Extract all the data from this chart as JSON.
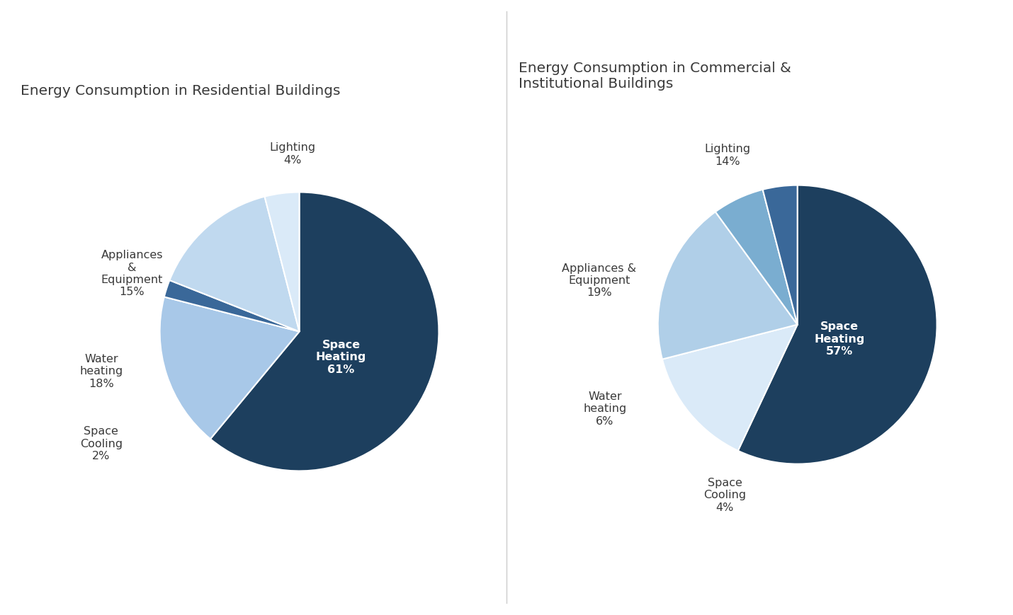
{
  "residential": {
    "title": "Energy Consumption in Residential Buildings",
    "values": [
      61,
      18,
      2,
      15,
      4
    ],
    "colors": [
      "#1d3f5e",
      "#a8c8e8",
      "#3a6899",
      "#c0d9ef",
      "#daeaf8"
    ],
    "startangle": 90
  },
  "commercial": {
    "title": "Energy Consumption in Commercial &\nInstitutional Buildings",
    "values": [
      57,
      14,
      19,
      6,
      4
    ],
    "colors": [
      "#1d3f5e",
      "#daeaf8",
      "#b0cfe8",
      "#7aadd0",
      "#3a6899"
    ],
    "startangle": 90
  },
  "divider_color": "#cccccc",
  "background_color": "#ffffff",
  "title_fontsize": 14.5,
  "label_fontsize": 11.5
}
